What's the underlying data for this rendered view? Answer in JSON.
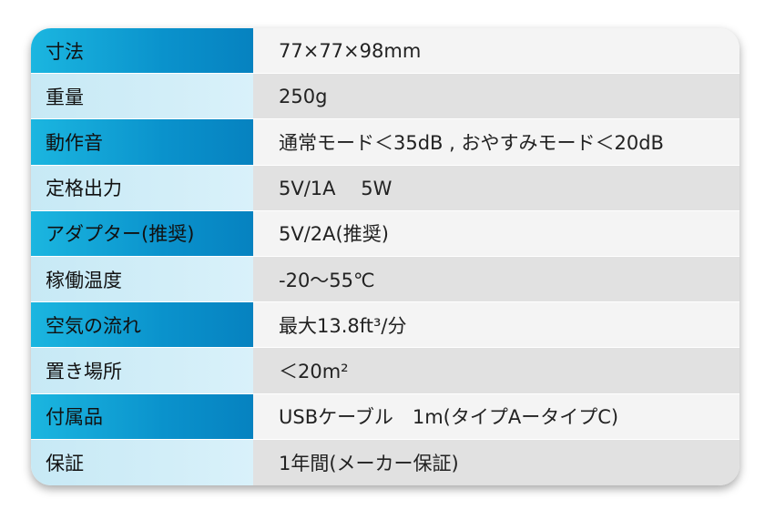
{
  "specs": [
    {
      "label": "寸法",
      "value": "77×77×98mm"
    },
    {
      "label": "重量",
      "value": "250g"
    },
    {
      "label": "動作音",
      "value": "通常モード＜35dB , おやすみモード＜20dB"
    },
    {
      "label": "定格出力",
      "value": "5V/1A　 5W"
    },
    {
      "label": "アダプター(推奨)",
      "value": "5V/2A(推奨)"
    },
    {
      "label": "稼働温度",
      "value": "-20〜55℃"
    },
    {
      "label": "空気の流れ",
      "value": "最大13.8ft³/分"
    },
    {
      "label": "置き場所",
      "value": "＜20m²"
    },
    {
      "label": "付属品",
      "value": "USBケーブル　1m(タイプAータイプC)"
    },
    {
      "label": "保証",
      "value": "1年間(メーカー保証)"
    }
  ],
  "colors": {
    "label_dark": "#0a92cc",
    "label_light": "#d0edf7",
    "value_light": "#f4f4f4",
    "value_dark": "#e1e1e1"
  }
}
